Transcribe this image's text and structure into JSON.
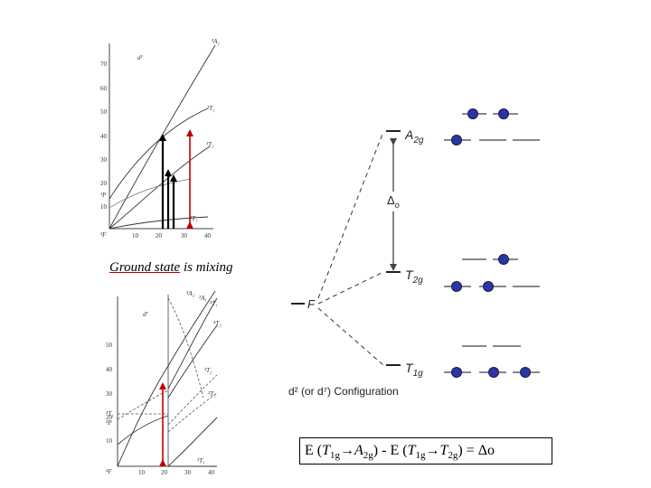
{
  "caption": {
    "part1": "Ground state",
    "part2": " is mixing"
  },
  "tanabe_d2": {
    "config_label": "d²",
    "y_ticks": [
      "70",
      "60",
      "50",
      "40",
      "30",
      "20",
      "10"
    ],
    "x_ticks": [
      "10",
      "20",
      "30",
      "40"
    ],
    "curve_labels": [
      "³A₂",
      "³T₁",
      "³T₂",
      "³T₁",
      "³P",
      "³F"
    ],
    "colors": {
      "transition_arrows": "#000000",
      "highlight_arrow": "#c00000"
    }
  },
  "tanabe_d7": {
    "config_label": "d⁷",
    "y_ticks": [
      "50",
      "40",
      "30",
      "20",
      "10"
    ],
    "x_ticks": [
      "10",
      "20",
      "30",
      "40"
    ],
    "curve_labels": [
      "⁴A₂",
      "²A₁",
      "⁴T₁",
      "⁴T₂",
      "²T₂",
      "²T₁",
      "⁴T₁",
      "⁴P",
      "⁴F",
      "²T₁"
    ]
  },
  "splitting": {
    "free_ion_label": "F",
    "levels": [
      {
        "main": "A",
        "sub": "2g"
      },
      {
        "main": "T",
        "sub": "2g"
      },
      {
        "main": "T",
        "sub": "1g"
      }
    ],
    "delta": {
      "main": "Δ",
      "sub": "o"
    },
    "configuration_label": "d² (or d⁷) Configuration",
    "electron_color": "#2a35a8",
    "electron_stroke": "#1a1a40"
  },
  "formula": {
    "e1": "E (",
    "t1": "T",
    "t1sub": "1g",
    "arrow1": "→",
    "a2": "A",
    "a2sub": "2g",
    "mid": ") - E (",
    "t1b": "T",
    "t1bsub": "1g",
    "arrow2": "→",
    "t2": "T",
    "t2sub": "2g",
    "end": ") = ",
    "delta": "Δo"
  }
}
